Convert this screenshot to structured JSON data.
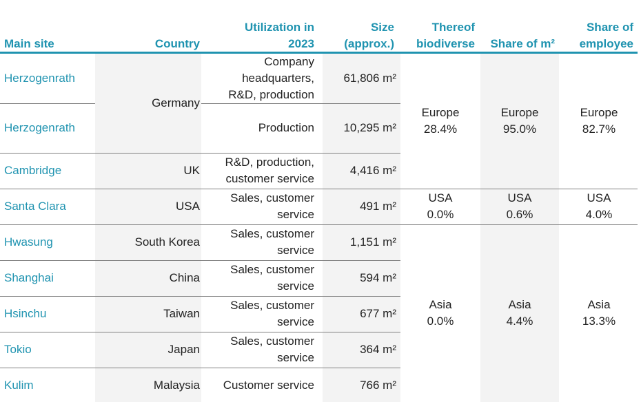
{
  "header": {
    "main_site": "Main site",
    "country": "Country",
    "utilization_1": "Utilization in",
    "utilization_2": "2023",
    "size_1": "Size",
    "size_2": "(approx.)",
    "biodiverse_1": "Thereof",
    "biodiverse_2": "biodiverse",
    "share_m2": "Share of m²",
    "employee_1": "Share of",
    "employee_2": "employee"
  },
  "rows": [
    {
      "site": "Herzogenrath",
      "util": [
        "Company",
        "headquarters,",
        "R&D, production"
      ],
      "size": "61,806 m²"
    },
    {
      "site": "Herzogenrath",
      "util": [
        "Production"
      ],
      "size": "10,295 m²"
    },
    {
      "site": "Cambridge",
      "country": "UK",
      "util": [
        "R&D, production,",
        "customer service"
      ],
      "size": "4,416 m²"
    },
    {
      "site": "Santa Clara",
      "country": "USA",
      "util": [
        "Sales, customer",
        "service"
      ],
      "size": "491 m²"
    },
    {
      "site": "Hwasung",
      "country": "South Korea",
      "util": [
        "Sales, customer",
        "service"
      ],
      "size": "1,151 m²"
    },
    {
      "site": "Shanghai",
      "country": "China",
      "util": [
        "Sales, customer",
        "service"
      ],
      "size": "594 m²"
    },
    {
      "site": "Hsinchu",
      "country": "Taiwan",
      "util": [
        "Sales, customer",
        "service"
      ],
      "size": "677 m²"
    },
    {
      "site": "Tokio",
      "country": "Japan",
      "util": [
        "Sales, customer",
        "service"
      ],
      "size": "364 m²"
    },
    {
      "site": "Kulim",
      "country": "Malaysia",
      "util": [
        "Customer service"
      ],
      "size": "766 m²"
    }
  ],
  "germany": "Germany",
  "regions": {
    "europe": {
      "name": "Europe",
      "biodiverse": "28.4%",
      "share_m2": "95.0%",
      "share_employee": "82.7%"
    },
    "usa": {
      "name": "USA",
      "biodiverse": "0.0%",
      "share_m2": "0.6%",
      "share_employee": "4.0%"
    },
    "asia": {
      "name": "Asia",
      "biodiverse": "0.0%",
      "share_m2": "4.4%",
      "share_employee": "13.3%"
    }
  },
  "colors": {
    "accent": "#1f93b0",
    "shade": "#f3f3f3",
    "rule": "#7f7f7f"
  }
}
